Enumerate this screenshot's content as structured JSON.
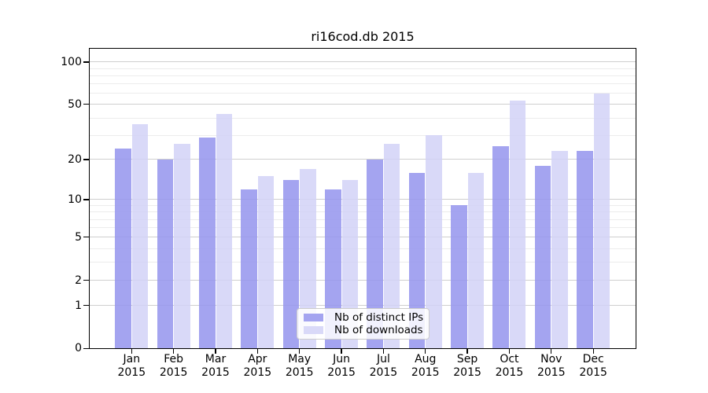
{
  "title": "ri16cod.db 2015",
  "colors": {
    "distinct_ips_fill": "rgba(150,150,238,0.87)",
    "downloads_fill": "rgba(210,210,247,0.85)",
    "grid_major": "#cfcfcf",
    "grid_minor": "#ececec",
    "axis": "#000000",
    "legend_border": "#cccccc",
    "legend_bg": "rgba(255,255,255,0.85)"
  },
  "chart_data": {
    "type": "bar",
    "title": "ri16cod.db 2015",
    "categories": [
      "Jan",
      "Feb",
      "Mar",
      "Apr",
      "May",
      "Jun",
      "Jul",
      "Aug",
      "Sep",
      "Oct",
      "Nov",
      "Dec"
    ],
    "x_tick_year": "2015",
    "series": [
      {
        "name": "Nb of distinct IPs",
        "color_key": "distinct_ips_fill",
        "values": [
          24,
          20,
          29,
          12,
          14,
          12,
          20,
          16,
          9,
          25,
          18,
          23
        ]
      },
      {
        "name": "Nb of downloads",
        "color_key": "downloads_fill",
        "values": [
          36,
          26,
          43,
          15,
          17,
          14,
          26,
          30,
          16,
          53,
          23,
          60
        ]
      }
    ],
    "y_axis": {
      "scale": "symlog  y = ln(1+x)",
      "tick_labels": [
        100,
        50,
        20,
        10,
        5,
        2,
        1,
        0
      ],
      "minor_gridlines": [
        3,
        4,
        6,
        7,
        8,
        9,
        30,
        40,
        60,
        70,
        80,
        90
      ],
      "range": [
        0,
        126
      ]
    },
    "grid": true,
    "legend_position": "bottom-center"
  }
}
